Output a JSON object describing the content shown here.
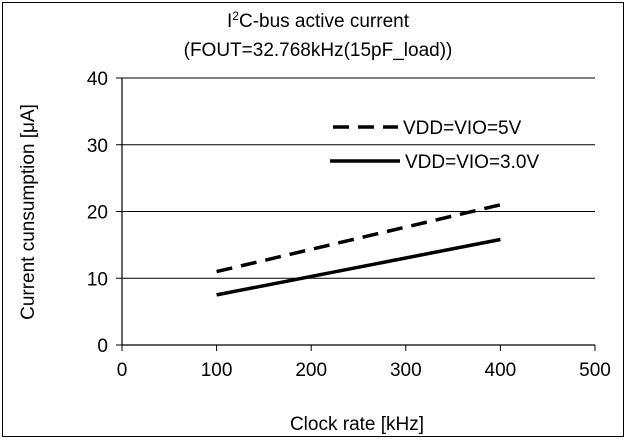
{
  "chart_data": {
    "type": "line",
    "title_main": "I",
    "title_sup": "2",
    "title_rest": "C-bus active current",
    "subtitle": "(FOUT=32.768kHz(15pF_load))",
    "xlabel": "Clock rate [kHz]",
    "ylabel": "Current cunsumption [μA]",
    "xlim": [
      0,
      500
    ],
    "ylim": [
      0,
      40
    ],
    "xticks": [
      0,
      100,
      200,
      300,
      400,
      500
    ],
    "yticks": [
      0,
      10,
      20,
      30,
      40
    ],
    "grid": "horizontal",
    "legend_position": "top-right",
    "series": [
      {
        "name": "VDD=VIO=5V",
        "style": "dashed",
        "color": "#000000",
        "x": [
          100,
          400
        ],
        "y": [
          11,
          21
        ]
      },
      {
        "name": "VDD=VIO=3.0V",
        "style": "solid",
        "color": "#000000",
        "x": [
          100,
          400
        ],
        "y": [
          7.5,
          15.8
        ]
      }
    ]
  }
}
